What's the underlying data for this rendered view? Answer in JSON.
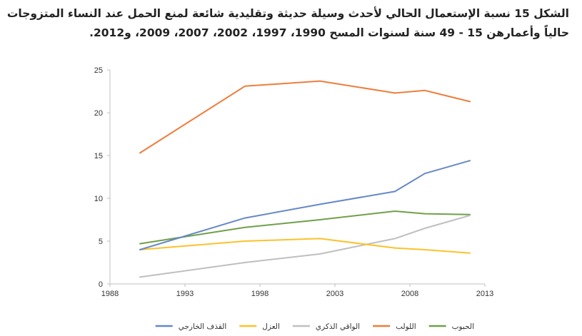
{
  "figure": {
    "title_line1": "الشكل 15 نسبة الإستعمال الحالي لأحدث وسيلة حديثة وتقليدية شائعة لمنع الحمل عند النساء المتزوجات",
    "title_line2": "حالياً وأعمارهن 15 - 49 سنة لسنوات المسح 1990، 1997، 2002، 2007، 2009، و2012."
  },
  "chart_data": {
    "type": "line",
    "xlim": [
      1988,
      2013
    ],
    "ylim": [
      0,
      25
    ],
    "x_ticks": [
      1988,
      1993,
      1998,
      2003,
      2008,
      2013
    ],
    "y_ticks": [
      0,
      5,
      10,
      15,
      20,
      25
    ],
    "grid": false,
    "legend_position": "bottom",
    "x": [
      1990,
      1997,
      2002,
      2007,
      2009,
      2012
    ],
    "series": [
      {
        "name": "الحبوب",
        "color": "#70a04a",
        "values": [
          4.7,
          6.6,
          7.5,
          8.5,
          8.2,
          8.1
        ]
      },
      {
        "name": "اللولب",
        "color": "#ee7d3b",
        "values": [
          15.3,
          23.1,
          23.7,
          22.3,
          22.6,
          21.3
        ]
      },
      {
        "name": "الواقي الذكري",
        "color": "#bfbfbf",
        "values": [
          0.8,
          2.5,
          3.5,
          5.3,
          6.5,
          8.0
        ]
      },
      {
        "name": "العزل",
        "color": "#fcc22a",
        "values": [
          4.0,
          5.0,
          5.3,
          4.2,
          4.0,
          3.6
        ]
      },
      {
        "name": "القذف الخارجي",
        "color": "#6588c8",
        "values": [
          4.0,
          7.7,
          9.3,
          10.8,
          12.9,
          14.4
        ]
      }
    ]
  }
}
